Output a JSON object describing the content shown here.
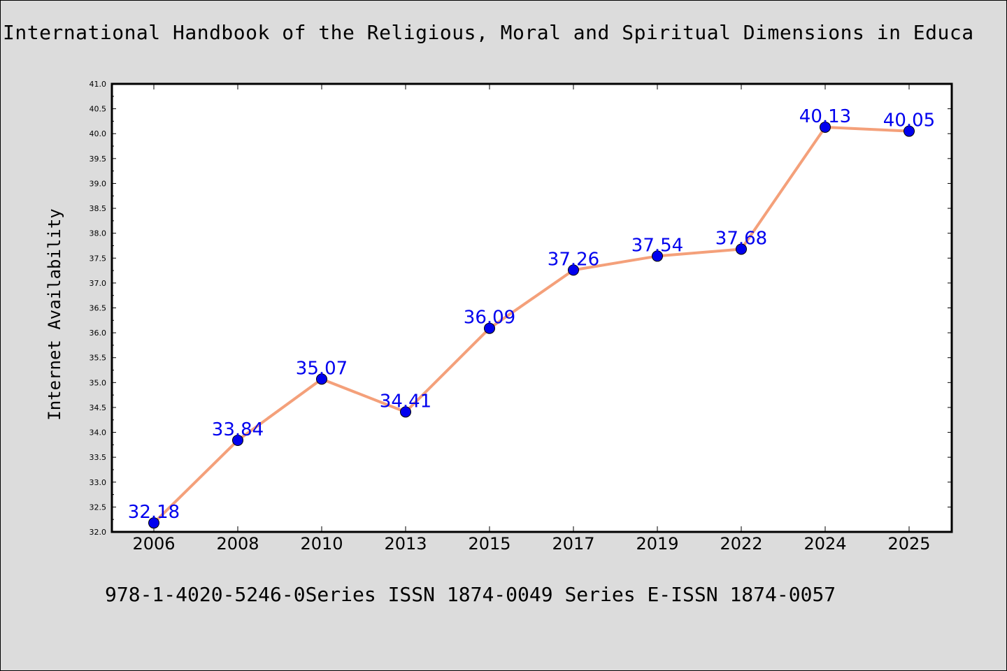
{
  "chart_data": {
    "type": "line",
    "title": "International Handbook of the Religious, Moral and Spiritual Dimensions in Educa",
    "ylabel": "Internet Availability",
    "xlabel": "",
    "categories": [
      "2006",
      "2008",
      "2010",
      "2013",
      "2015",
      "2017",
      "2019",
      "2022",
      "2024",
      "2025"
    ],
    "series": [
      {
        "values": [
          32.18,
          33.84,
          35.07,
          34.41,
          36.09,
          37.26,
          37.54,
          37.68,
          40.13,
          40.05
        ],
        "labels": [
          "32.18",
          "33.84",
          "35.07",
          "34.41",
          "36.09",
          "37.26",
          "37.54",
          "37.68",
          "40.13",
          "40.05"
        ],
        "line_color": "#f4a07a",
        "marker_color": "#0000ee",
        "label_color": "#0000ee"
      }
    ],
    "ylim": [
      32.0,
      41.0
    ],
    "yticks": [
      "32.0",
      "32.5",
      "33.0",
      "33.5",
      "34.0",
      "34.5",
      "35.0",
      "35.5",
      "36.0",
      "36.5",
      "37.0",
      "37.5",
      "38.0",
      "38.5",
      "39.0",
      "39.5",
      "40.0",
      "40.5",
      "41.0"
    ],
    "grid": false
  },
  "footer": {
    "text": "978-1-4020-5246-0Series ISSN 1874-0049 Series E-ISSN 1874-0057"
  },
  "colors": {
    "background": "#dcdcdc",
    "plot_background": "#ffffff"
  }
}
